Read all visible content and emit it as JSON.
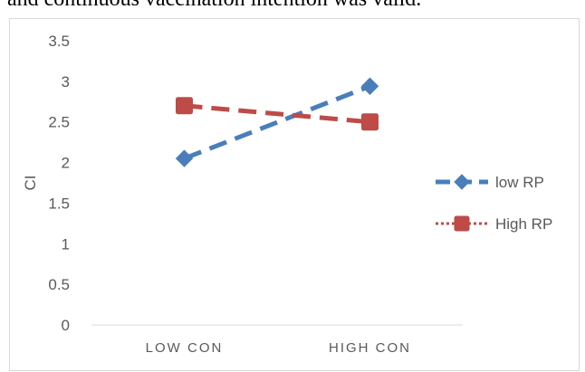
{
  "page": {
    "top_text": "and continuous vaccination intention was valid."
  },
  "chart_data": {
    "type": "line",
    "categories": [
      "LOW CON",
      "HIGH CON"
    ],
    "series": [
      {
        "name": "low RP",
        "values": [
          2.05,
          2.94
        ],
        "color": "#4a7ebb",
        "line_style": "dashed",
        "marker": "diamond"
      },
      {
        "name": "High RP",
        "values": [
          2.7,
          2.5
        ],
        "color": "#be4b48",
        "line_style": "dashed",
        "legend_line_style": "dotted",
        "marker": "square"
      }
    ],
    "title": "",
    "xlabel": "",
    "ylabel": "CI",
    "ylim": [
      0,
      3.5
    ],
    "yticks": [
      "0",
      "0.5",
      "1",
      "1.5",
      "2",
      "2.5",
      "3",
      "3.5"
    ],
    "grid": false,
    "legend_position": "right"
  }
}
